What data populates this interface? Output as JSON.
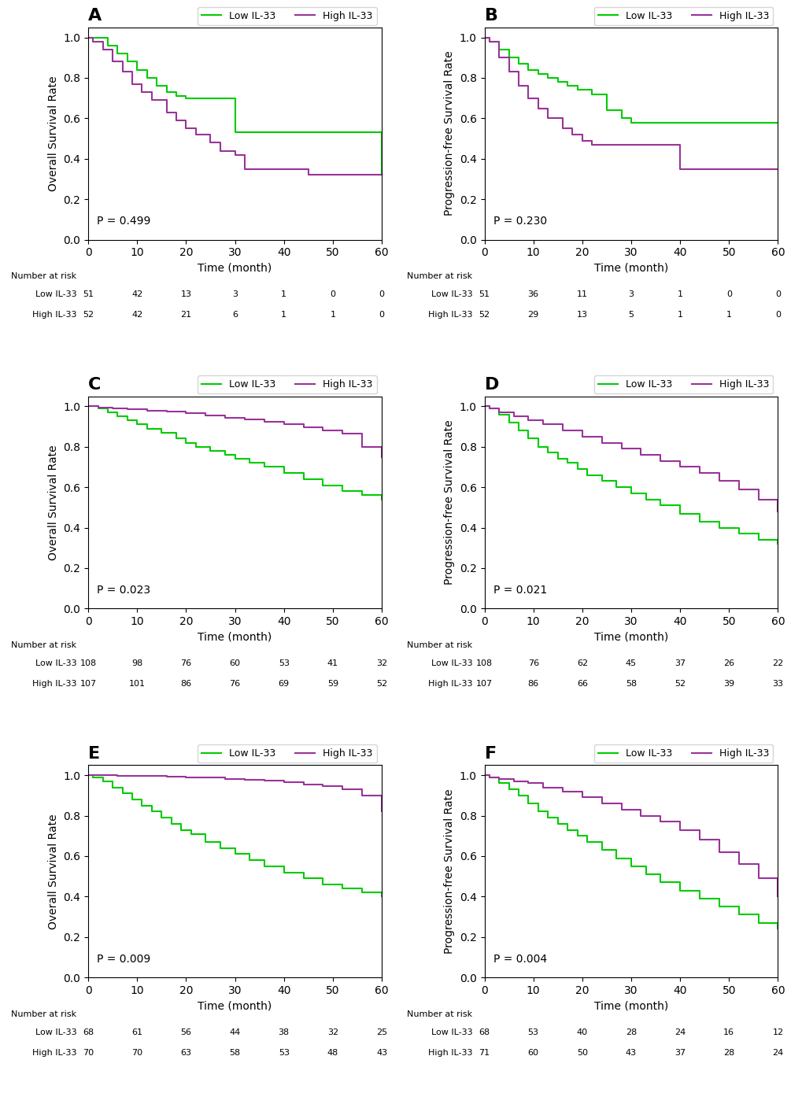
{
  "chart_data": [
    {
      "type": "step",
      "title": "A",
      "xlabel": "Time (month)",
      "ylabel": "Overall Survival Rate",
      "annotations": [
        "P = 0.499"
      ],
      "xlim": [
        0,
        60
      ],
      "ylim": [
        0.0,
        1.05
      ],
      "xticks": [
        0,
        10,
        20,
        30,
        40,
        50,
        60
      ],
      "yticks": [
        0.0,
        0.2,
        0.4,
        0.6,
        0.8,
        1.0
      ],
      "legend": "upper right",
      "grid": false,
      "series": [
        {
          "name": "Low IL-33",
          "color": "#00CC00",
          "x": [
            0,
            2,
            4,
            6,
            8,
            10,
            12,
            14,
            16,
            18,
            20,
            22,
            25,
            28,
            30,
            45,
            60
          ],
          "values": [
            1.0,
            1.0,
            0.96,
            0.92,
            0.88,
            0.84,
            0.8,
            0.76,
            0.73,
            0.71,
            0.7,
            0.7,
            0.7,
            0.7,
            0.53,
            0.53,
            0.32
          ]
        },
        {
          "name": "High IL-33",
          "color": "#993399",
          "x": [
            0,
            1,
            3,
            5,
            7,
            9,
            11,
            13,
            16,
            18,
            20,
            22,
            25,
            27,
            30,
            32,
            45,
            60
          ],
          "values": [
            1.0,
            0.98,
            0.94,
            0.88,
            0.83,
            0.77,
            0.73,
            0.69,
            0.63,
            0.59,
            0.55,
            0.52,
            0.48,
            0.44,
            0.42,
            0.35,
            0.32,
            0.32
          ]
        }
      ],
      "risk_table": {
        "title": "Number at risk",
        "x": [
          0,
          10,
          20,
          30,
          40,
          50,
          60
        ],
        "rows": [
          {
            "name": "Low IL-33",
            "values": [
              51,
              42,
              13,
              3,
              1,
              0,
              0
            ]
          },
          {
            "name": "High IL-33",
            "values": [
              52,
              42,
              21,
              6,
              1,
              1,
              0
            ]
          }
        ]
      }
    },
    {
      "type": "step",
      "title": "B",
      "xlabel": "Time (month)",
      "ylabel": "Progression-free Survival Rate",
      "annotations": [
        "P = 0.230"
      ],
      "xlim": [
        0,
        60
      ],
      "ylim": [
        0.0,
        1.05
      ],
      "xticks": [
        0,
        10,
        20,
        30,
        40,
        50,
        60
      ],
      "yticks": [
        0.0,
        0.2,
        0.4,
        0.6,
        0.8,
        1.0
      ],
      "legend": "upper right",
      "grid": false,
      "series": [
        {
          "name": "Low IL-33",
          "color": "#00CC00",
          "x": [
            0,
            1,
            3,
            5,
            7,
            9,
            11,
            13,
            15,
            17,
            19,
            22,
            25,
            28,
            30,
            45,
            60
          ],
          "values": [
            1.0,
            0.98,
            0.94,
            0.9,
            0.87,
            0.84,
            0.82,
            0.8,
            0.78,
            0.76,
            0.74,
            0.72,
            0.64,
            0.6,
            0.58,
            0.58,
            0.58
          ]
        },
        {
          "name": "High IL-33",
          "color": "#993399",
          "x": [
            0,
            1,
            3,
            5,
            7,
            9,
            11,
            13,
            16,
            18,
            20,
            22,
            25,
            28,
            30,
            35,
            40,
            45,
            60
          ],
          "values": [
            1.0,
            0.98,
            0.9,
            0.83,
            0.76,
            0.7,
            0.65,
            0.6,
            0.55,
            0.52,
            0.49,
            0.47,
            0.47,
            0.47,
            0.47,
            0.47,
            0.35,
            0.35,
            0.35
          ]
        }
      ],
      "risk_table": {
        "title": "Number at risk",
        "x": [
          0,
          10,
          20,
          30,
          40,
          50,
          60
        ],
        "rows": [
          {
            "name": "Low IL-33",
            "values": [
              51,
              36,
              11,
              3,
              1,
              0,
              0
            ]
          },
          {
            "name": "High IL-33",
            "values": [
              52,
              29,
              13,
              5,
              1,
              1,
              0
            ]
          }
        ]
      }
    },
    {
      "type": "step",
      "title": "C",
      "xlabel": "Time (month)",
      "ylabel": "Overall Survival Rate",
      "annotations": [
        "P = 0.023"
      ],
      "xlim": [
        0,
        60
      ],
      "ylim": [
        0.0,
        1.05
      ],
      "xticks": [
        0,
        10,
        20,
        30,
        40,
        50,
        60
      ],
      "yticks": [
        0.0,
        0.2,
        0.4,
        0.6,
        0.8,
        1.0
      ],
      "legend": "upper right",
      "grid": false,
      "series": [
        {
          "name": "Low IL-33",
          "color": "#00CC00",
          "x": [
            0,
            2,
            4,
            6,
            8,
            10,
            12,
            15,
            18,
            20,
            22,
            25,
            28,
            30,
            33,
            36,
            40,
            44,
            48,
            52,
            56,
            60
          ],
          "values": [
            1.0,
            0.99,
            0.97,
            0.95,
            0.93,
            0.91,
            0.89,
            0.87,
            0.84,
            0.82,
            0.8,
            0.78,
            0.76,
            0.74,
            0.72,
            0.7,
            0.67,
            0.64,
            0.61,
            0.58,
            0.56,
            0.54
          ]
        },
        {
          "name": "High IL-33",
          "color": "#993399",
          "x": [
            0,
            2,
            5,
            8,
            12,
            16,
            20,
            24,
            28,
            32,
            36,
            40,
            44,
            48,
            52,
            56,
            60
          ],
          "values": [
            1.0,
            0.995,
            0.99,
            0.985,
            0.98,
            0.975,
            0.965,
            0.955,
            0.945,
            0.935,
            0.925,
            0.91,
            0.895,
            0.88,
            0.865,
            0.8,
            0.75
          ]
        }
      ],
      "risk_table": {
        "title": "Number at risk",
        "x": [
          0,
          10,
          20,
          30,
          40,
          50,
          60
        ],
        "rows": [
          {
            "name": "Low IL-33",
            "values": [
              108,
              98,
              76,
              60,
              53,
              41,
              32
            ]
          },
          {
            "name": "High IL-33",
            "values": [
              107,
              101,
              86,
              76,
              69,
              59,
              52
            ]
          }
        ]
      }
    },
    {
      "type": "step",
      "title": "D",
      "xlabel": "Time (month)",
      "ylabel": "Progression-free Survival Rate",
      "annotations": [
        "P = 0.021"
      ],
      "xlim": [
        0,
        60
      ],
      "ylim": [
        0.0,
        1.05
      ],
      "xticks": [
        0,
        10,
        20,
        30,
        40,
        50,
        60
      ],
      "yticks": [
        0.0,
        0.2,
        0.4,
        0.6,
        0.8,
        1.0
      ],
      "legend": "upper right",
      "grid": false,
      "series": [
        {
          "name": "Low IL-33",
          "color": "#00CC00",
          "x": [
            0,
            1,
            3,
            5,
            7,
            9,
            11,
            13,
            15,
            17,
            19,
            21,
            24,
            27,
            30,
            33,
            36,
            40,
            44,
            48,
            52,
            56,
            60
          ],
          "values": [
            1.0,
            0.99,
            0.96,
            0.92,
            0.88,
            0.84,
            0.8,
            0.77,
            0.74,
            0.72,
            0.69,
            0.66,
            0.63,
            0.6,
            0.57,
            0.54,
            0.51,
            0.47,
            0.43,
            0.4,
            0.37,
            0.34,
            0.32
          ]
        },
        {
          "name": "High IL-33",
          "color": "#993399",
          "x": [
            0,
            1,
            3,
            6,
            9,
            12,
            16,
            20,
            24,
            28,
            32,
            36,
            40,
            44,
            48,
            52,
            56,
            60
          ],
          "values": [
            1.0,
            0.99,
            0.97,
            0.95,
            0.93,
            0.91,
            0.88,
            0.85,
            0.82,
            0.79,
            0.76,
            0.73,
            0.7,
            0.67,
            0.63,
            0.59,
            0.54,
            0.48
          ]
        }
      ],
      "risk_table": {
        "title": "Number at risk",
        "x": [
          0,
          10,
          20,
          30,
          40,
          50,
          60
        ],
        "rows": [
          {
            "name": "Low IL-33",
            "values": [
              108,
              76,
              62,
              45,
              37,
              26,
              22
            ]
          },
          {
            "name": "High IL-33",
            "values": [
              107,
              86,
              66,
              58,
              52,
              39,
              33
            ]
          }
        ]
      }
    },
    {
      "type": "step",
      "title": "E",
      "xlabel": "Time (month)",
      "ylabel": "Overall Survival Rate",
      "annotations": [
        "P = 0.009"
      ],
      "xlim": [
        0,
        60
      ],
      "ylim": [
        0.0,
        1.05
      ],
      "xticks": [
        0,
        10,
        20,
        30,
        40,
        50,
        60
      ],
      "yticks": [
        0.0,
        0.2,
        0.4,
        0.6,
        0.8,
        1.0
      ],
      "legend": "upper right",
      "grid": false,
      "series": [
        {
          "name": "Low IL-33",
          "color": "#00CC00",
          "x": [
            0,
            1,
            3,
            5,
            7,
            9,
            11,
            13,
            15,
            17,
            19,
            21,
            24,
            27,
            30,
            33,
            36,
            40,
            44,
            48,
            52,
            56,
            60
          ],
          "values": [
            1.0,
            0.99,
            0.97,
            0.94,
            0.91,
            0.88,
            0.85,
            0.82,
            0.79,
            0.76,
            0.73,
            0.71,
            0.67,
            0.64,
            0.61,
            0.58,
            0.55,
            0.52,
            0.49,
            0.46,
            0.44,
            0.42,
            0.4
          ]
        },
        {
          "name": "High IL-33",
          "color": "#993399",
          "x": [
            0,
            1,
            3,
            6,
            9,
            12,
            16,
            20,
            24,
            28,
            32,
            36,
            40,
            44,
            48,
            52,
            56,
            60
          ],
          "values": [
            1.0,
            1.0,
            0.999,
            0.998,
            0.997,
            0.996,
            0.994,
            0.99,
            0.987,
            0.983,
            0.979,
            0.974,
            0.965,
            0.955,
            0.945,
            0.93,
            0.9,
            0.82
          ]
        }
      ],
      "risk_table": {
        "title": "Number at risk",
        "x": [
          0,
          10,
          20,
          30,
          40,
          50,
          60
        ],
        "rows": [
          {
            "name": "Low IL-33",
            "values": [
              68,
              61,
              56,
              44,
              38,
              32,
              25
            ]
          },
          {
            "name": "High IL-33",
            "values": [
              70,
              70,
              63,
              58,
              53,
              48,
              43
            ]
          }
        ]
      }
    },
    {
      "type": "step",
      "title": "F",
      "xlabel": "Time (month)",
      "ylabel": "Progression-free Survival Rate",
      "annotations": [
        "P = 0.004"
      ],
      "xlim": [
        0,
        60
      ],
      "ylim": [
        0.0,
        1.05
      ],
      "xticks": [
        0,
        10,
        20,
        30,
        40,
        50,
        60
      ],
      "yticks": [
        0.0,
        0.2,
        0.4,
        0.6,
        0.8,
        1.0
      ],
      "legend": "upper right",
      "grid": false,
      "series": [
        {
          "name": "Low IL-33",
          "color": "#00CC00",
          "x": [
            0,
            1,
            3,
            5,
            7,
            9,
            11,
            13,
            15,
            17,
            19,
            21,
            24,
            27,
            30,
            33,
            36,
            40,
            44,
            48,
            52,
            56,
            60
          ],
          "values": [
            1.0,
            0.99,
            0.96,
            0.93,
            0.9,
            0.86,
            0.82,
            0.79,
            0.76,
            0.73,
            0.7,
            0.67,
            0.63,
            0.59,
            0.55,
            0.51,
            0.47,
            0.43,
            0.39,
            0.35,
            0.31,
            0.27,
            0.24
          ]
        },
        {
          "name": "High IL-33",
          "color": "#993399",
          "x": [
            0,
            1,
            3,
            6,
            9,
            12,
            16,
            20,
            24,
            28,
            32,
            36,
            40,
            44,
            48,
            52,
            56,
            60
          ],
          "values": [
            1.0,
            0.99,
            0.98,
            0.97,
            0.96,
            0.94,
            0.92,
            0.89,
            0.86,
            0.83,
            0.8,
            0.77,
            0.73,
            0.68,
            0.62,
            0.56,
            0.49,
            0.4
          ]
        }
      ],
      "risk_table": {
        "title": "Number at risk",
        "x": [
          0,
          10,
          20,
          30,
          40,
          50,
          60
        ],
        "rows": [
          {
            "name": "Low IL-33",
            "values": [
              68,
              53,
              40,
              28,
              24,
              16,
              12
            ]
          },
          {
            "name": "High IL-33",
            "values": [
              71,
              60,
              50,
              43,
              37,
              28,
              24
            ]
          }
        ]
      }
    }
  ]
}
